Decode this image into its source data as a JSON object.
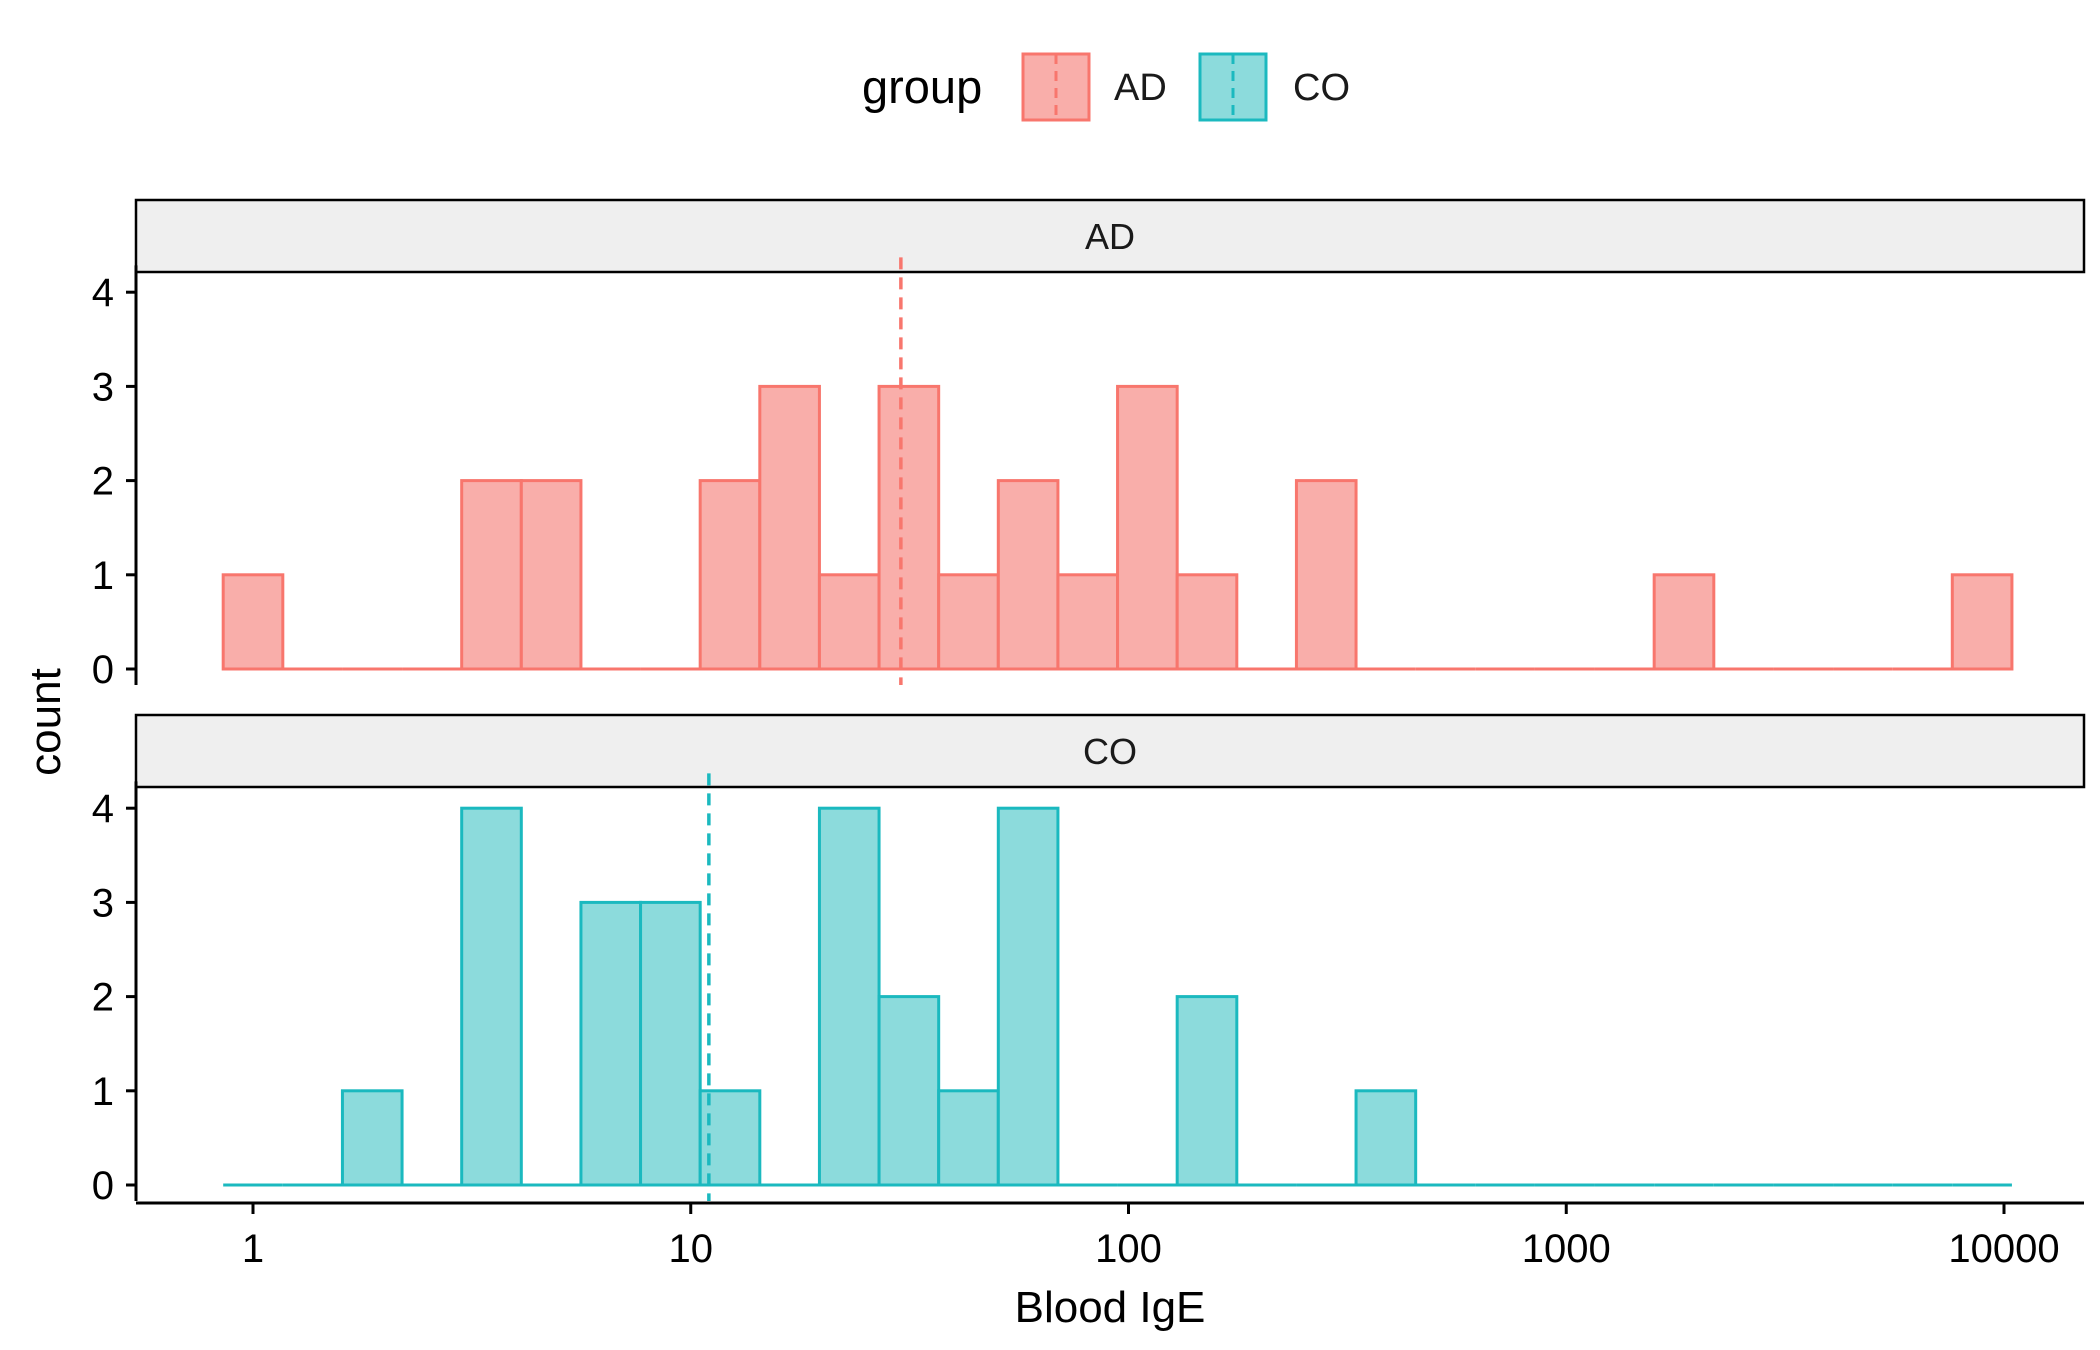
{
  "chart_data": {
    "type": "bar",
    "subtype": "faceted histogram",
    "x_scale": "log10",
    "xlabel": "Blood IgE",
    "ylabel": "count",
    "x_ticks": [
      1,
      10,
      100,
      1000,
      10000
    ],
    "x_tick_labels": [
      "1",
      "10",
      "100",
      "1000",
      "10000"
    ],
    "y_ticks": [
      0,
      1,
      2,
      3,
      4
    ],
    "y_tick_labels": [
      "0",
      "1",
      "2",
      "3",
      "4"
    ],
    "ylim": [
      0,
      4.2
    ],
    "legend": {
      "title": "group",
      "position": "top",
      "entries": [
        {
          "label": "AD",
          "color": "#F8766D",
          "fill": "#F9AEAA"
        },
        {
          "label": "CO",
          "color": "#1BB9BF",
          "fill": "#8CDBDC"
        }
      ]
    },
    "bins": {
      "count": 30,
      "first_center": 1.0,
      "last_center": 8912.5,
      "width_log10": 0.136
    },
    "series": [
      {
        "name": "AD",
        "facet_label": "AD",
        "color": "#F8766D",
        "fill": "#F9AEAA",
        "mean_line": 30.2,
        "counts": [
          1,
          0,
          0,
          0,
          2,
          2,
          0,
          0,
          2,
          3,
          1,
          3,
          1,
          2,
          1,
          3,
          1,
          0,
          2,
          0,
          0,
          0,
          0,
          0,
          1,
          0,
          0,
          0,
          0,
          1
        ]
      },
      {
        "name": "CO",
        "facet_label": "CO",
        "color": "#1BB9BF",
        "fill": "#8CDBDC",
        "mean_line": 11.0,
        "counts": [
          0,
          0,
          1,
          0,
          4,
          0,
          3,
          3,
          1,
          0,
          4,
          2,
          1,
          4,
          0,
          0,
          2,
          0,
          0,
          1,
          0,
          0,
          0,
          0,
          0,
          0,
          0,
          0,
          0,
          0
        ]
      }
    ]
  }
}
